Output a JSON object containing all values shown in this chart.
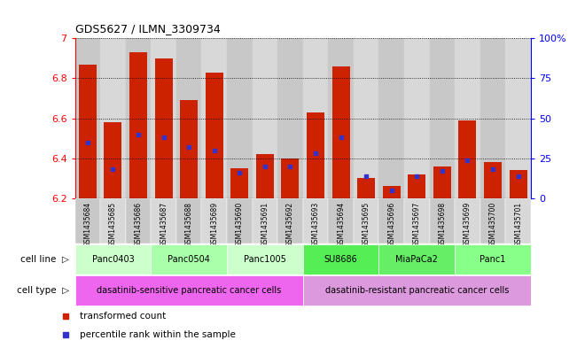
{
  "title": "GDS5627 / ILMN_3309734",
  "samples": [
    "GSM1435684",
    "GSM1435685",
    "GSM1435686",
    "GSM1435687",
    "GSM1435688",
    "GSM1435689",
    "GSM1435690",
    "GSM1435691",
    "GSM1435692",
    "GSM1435693",
    "GSM1435694",
    "GSM1435695",
    "GSM1435696",
    "GSM1435697",
    "GSM1435698",
    "GSM1435699",
    "GSM1435700",
    "GSM1435701"
  ],
  "transformed_count": [
    6.87,
    6.58,
    6.93,
    6.9,
    6.69,
    6.83,
    6.35,
    6.42,
    6.4,
    6.63,
    6.86,
    6.3,
    6.26,
    6.32,
    6.36,
    6.59,
    6.38,
    6.34
  ],
  "percentile_rank": [
    35,
    18,
    40,
    38,
    32,
    30,
    16,
    20,
    20,
    28,
    38,
    14,
    5,
    14,
    17,
    24,
    18,
    14
  ],
  "ylim_left": [
    6.2,
    7.0
  ],
  "ylim_right": [
    0,
    100
  ],
  "yticks_left": [
    6.2,
    6.4,
    6.6,
    6.8,
    7.0
  ],
  "ytick_labels_left": [
    "6.2",
    "6.4",
    "6.6",
    "6.8",
    "7"
  ],
  "yticks_right": [
    0,
    25,
    50,
    75,
    100
  ],
  "ytick_labels_right": [
    "0",
    "25",
    "50",
    "75",
    "100%"
  ],
  "bar_color": "#cc2200",
  "percentile_color": "#3333cc",
  "cell_lines": [
    {
      "name": "Panc0403",
      "start": 0,
      "end": 2,
      "color": "#ccffcc"
    },
    {
      "name": "Panc0504",
      "start": 3,
      "end": 5,
      "color": "#aaffaa"
    },
    {
      "name": "Panc1005",
      "start": 6,
      "end": 8,
      "color": "#ccffcc"
    },
    {
      "name": "SU8686",
      "start": 9,
      "end": 11,
      "color": "#55ee55"
    },
    {
      "name": "MiaPaCa2",
      "start": 12,
      "end": 14,
      "color": "#66ee66"
    },
    {
      "name": "Panc1",
      "start": 15,
      "end": 17,
      "color": "#88ff88"
    }
  ],
  "cell_types": [
    {
      "name": "dasatinib-sensitive pancreatic cancer cells",
      "start": 0,
      "end": 8,
      "color": "#ee66ee"
    },
    {
      "name": "dasatinib-resistant pancreatic cancer cells",
      "start": 9,
      "end": 17,
      "color": "#dd99dd"
    }
  ],
  "legend_items": [
    {
      "label": "transformed count",
      "color": "#cc2200"
    },
    {
      "label": "percentile rank within the sample",
      "color": "#3333cc"
    }
  ],
  "bg_color": "#ffffff",
  "bar_width": 0.7,
  "sample_bg_color": "#c8c8c8",
  "sample_bg_alt": "#d8d8d8"
}
